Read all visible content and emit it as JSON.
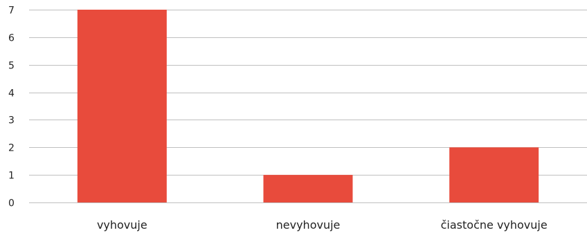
{
  "chart_data": {
    "type": "bar",
    "title": "",
    "xlabel": "",
    "ylabel": "",
    "categories": [
      "vyhovuje",
      "nevyhovuje",
      "čiastočne vyhovuje"
    ],
    "values": [
      7,
      1,
      2
    ],
    "ylim": [
      0,
      7
    ],
    "yticks": [
      0,
      1,
      2,
      3,
      4,
      5,
      6,
      7
    ],
    "grid": true,
    "legend": "none",
    "bar_color": "#e84b3c",
    "grid_color": "#bfbfbf"
  }
}
